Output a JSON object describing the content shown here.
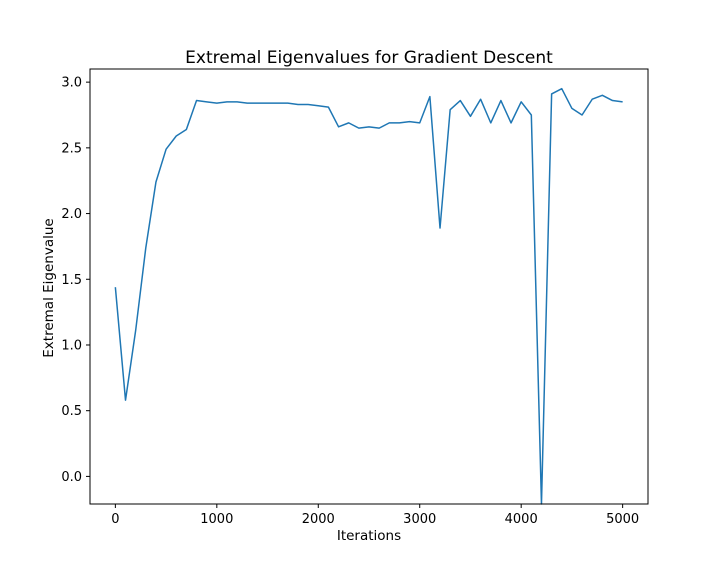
{
  "chart_data": {
    "type": "line",
    "title": "Extremal Eigenvalues for Gradient Descent",
    "xlabel": "Iterations",
    "ylabel": "Extremal Eigenvalue",
    "xlim": [
      -250,
      5250
    ],
    "ylim": [
      -0.21,
      3.1
    ],
    "xticks": [
      0,
      1000,
      2000,
      3000,
      4000,
      5000
    ],
    "yticks": [
      0.0,
      0.5,
      1.0,
      1.5,
      2.0,
      2.5,
      3.0
    ],
    "xtick_labels": [
      "0",
      "1000",
      "2000",
      "3000",
      "4000",
      "5000"
    ],
    "ytick_labels": [
      "0.0",
      "0.5",
      "1.0",
      "1.5",
      "2.0",
      "2.5",
      "3.0"
    ],
    "grid": false,
    "series_color": "#1f77b4",
    "series": [
      {
        "x": [
          0,
          100,
          200,
          300,
          400,
          500,
          600,
          700,
          800,
          900,
          1000,
          1100,
          1200,
          1300,
          1400,
          1500,
          1600,
          1700,
          1800,
          1900,
          2000,
          2100,
          2200,
          2300,
          2400,
          2500,
          2600,
          2700,
          2800,
          2900,
          3000,
          3100,
          3200,
          3300,
          3400,
          3500,
          3600,
          3700,
          3800,
          3900,
          4000,
          4100,
          4200,
          4300,
          4400,
          4500,
          4600,
          4700,
          4800,
          4900,
          5000
        ],
        "values": [
          1.44,
          0.58,
          1.11,
          1.74,
          2.24,
          2.49,
          2.59,
          2.64,
          2.86,
          2.85,
          2.84,
          2.85,
          2.85,
          2.84,
          2.84,
          2.84,
          2.84,
          2.84,
          2.83,
          2.83,
          2.82,
          2.81,
          2.66,
          2.69,
          2.65,
          2.66,
          2.65,
          2.69,
          2.69,
          2.7,
          2.69,
          2.89,
          1.89,
          2.79,
          2.86,
          2.74,
          2.87,
          2.69,
          2.86,
          2.69,
          2.85,
          2.75,
          -0.21,
          2.91,
          2.95,
          2.8,
          2.75,
          2.87,
          2.9,
          2.86,
          2.85
        ]
      }
    ]
  }
}
